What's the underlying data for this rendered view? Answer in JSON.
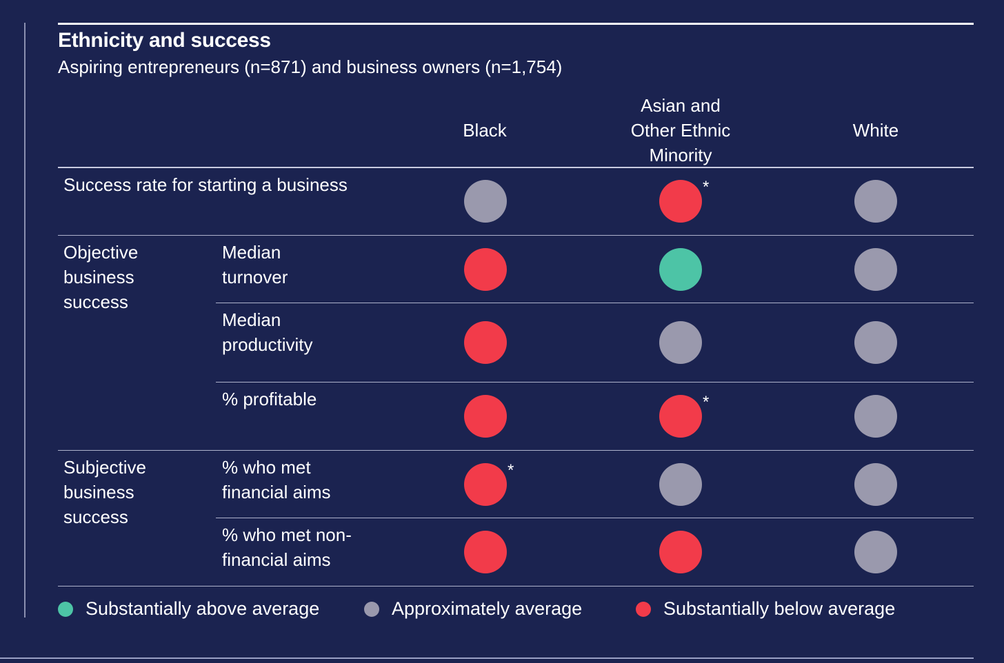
{
  "header": {
    "title": "Ethnicity and success",
    "subtitle": "Aspiring entrepreneurs (n=871) and business owners (n=1,754)"
  },
  "colors": {
    "background": "#1b2350",
    "above": "#4dc4a6",
    "average": "#9a99ad",
    "below": "#f23b4a"
  },
  "columns": [
    "Black",
    "Asian and\nOther Ethnic\nMinority",
    "White"
  ],
  "groups": {
    "objective": "Objective\nbusiness\nsuccess",
    "subjective": "Subjective\nbusiness\nsuccess"
  },
  "rows": {
    "success_rate": "Success rate for starting a business",
    "median_turnover": "Median\nturnover",
    "median_productivity": "Median\nproductivity",
    "profitable": "% profitable",
    "financial_aims": "% who met\nfinancial aims",
    "non_financial_aims": "% who met non-\nfinancial aims"
  },
  "star_symbol": "*",
  "legend": {
    "above": "Substantially above average",
    "average": "Approximately average",
    "below": "Substantially below average"
  },
  "chart_data": {
    "type": "table",
    "title": "Ethnicity and success",
    "subtitle": "Aspiring entrepreneurs (n=871) and business owners (n=1,754)",
    "columns": [
      "Black",
      "Asian and Other Ethnic Minority",
      "White"
    ],
    "rows": [
      {
        "label": "Success rate for starting a business",
        "values": [
          "average",
          "below*",
          "average"
        ]
      },
      {
        "group": "Objective business success",
        "label": "Median turnover",
        "values": [
          "below",
          "above",
          "average"
        ]
      },
      {
        "group": "Objective business success",
        "label": "Median productivity",
        "values": [
          "below",
          "average",
          "average"
        ]
      },
      {
        "group": "Objective business success",
        "label": "% profitable",
        "values": [
          "below",
          "below*",
          "average"
        ]
      },
      {
        "group": "Subjective business success",
        "label": "% who met financial aims",
        "values": [
          "below*",
          "average",
          "average"
        ]
      },
      {
        "group": "Subjective business success",
        "label": "% who met non-financial aims",
        "values": [
          "below",
          "below",
          "average"
        ]
      }
    ],
    "legend": [
      "Substantially above average",
      "Approximately average",
      "Substantially below average"
    ]
  }
}
